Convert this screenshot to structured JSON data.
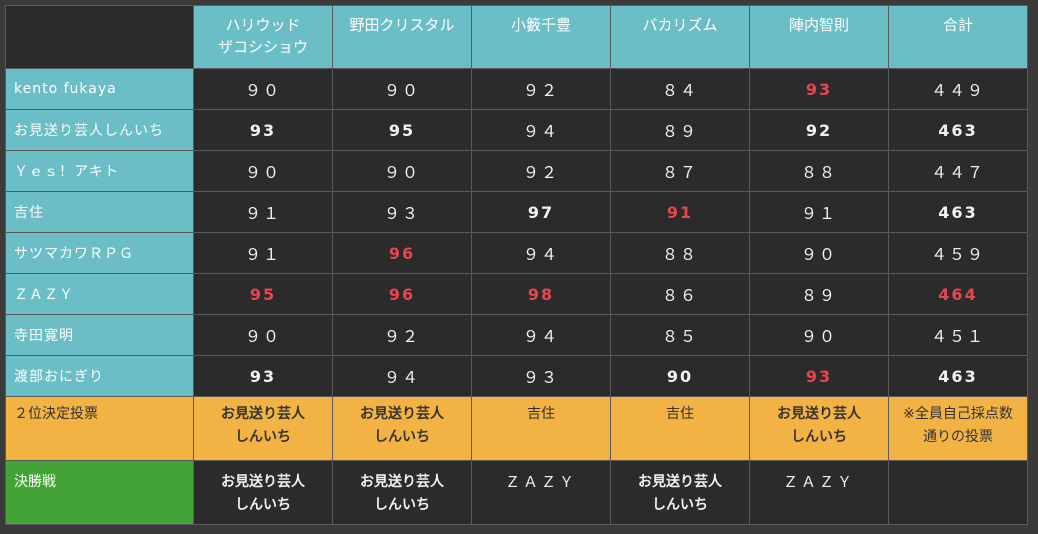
{
  "columns": [
    "ハリウッド\nザコシショウ",
    "野田クリスタル",
    "小籔千豊",
    "バカリズム",
    "陣内智則",
    "合計"
  ],
  "rows": [
    {
      "name": "kento fukaya",
      "scores": [
        "９０",
        "９０",
        "９２",
        "８４",
        "93",
        "４４９"
      ]
    },
    {
      "name": "お見送り芸人しんいち",
      "scores": [
        "93",
        "95",
        "９４",
        "８９",
        "92",
        "463"
      ]
    },
    {
      "name": "Ｙｅｓ！アキト",
      "scores": [
        "９０",
        "９０",
        "９２",
        "８７",
        "８８",
        "４４７"
      ]
    },
    {
      "name": "吉住",
      "scores": [
        "９１",
        "９３",
        "97",
        "91",
        "９１",
        "463"
      ]
    },
    {
      "name": "サツマカワＲＰＧ",
      "scores": [
        "９１",
        "96",
        "９４",
        "８８",
        "９０",
        "４５９"
      ]
    },
    {
      "name": "ＺＡＺＹ",
      "scores": [
        "95",
        "96",
        "98",
        "８６",
        "８９",
        "464"
      ]
    },
    {
      "name": "寺田寛明",
      "scores": [
        "９０",
        "９２",
        "９４",
        "８５",
        "９０",
        "４５１"
      ]
    },
    {
      "name": "渡部おにぎり",
      "scores": [
        "93",
        "９４",
        "９３",
        "90",
        "93",
        "463"
      ]
    }
  ],
  "vote": {
    "label": "２位決定投票",
    "values": [
      "お見送り芸人\nしんいち",
      "お見送り芸人\nしんいち",
      "吉住",
      "吉住",
      "お見送り芸人\nしんいち",
      "※全員自己採点数\n通りの投票"
    ]
  },
  "final": {
    "label": "決勝戦",
    "values": [
      "お見送り芸人\nしんいち",
      "お見送り芸人\nしんいち",
      "ＺＡＺＹ",
      "お見送り芸人\nしんいち",
      "ＺＡＺＹ",
      ""
    ]
  }
}
